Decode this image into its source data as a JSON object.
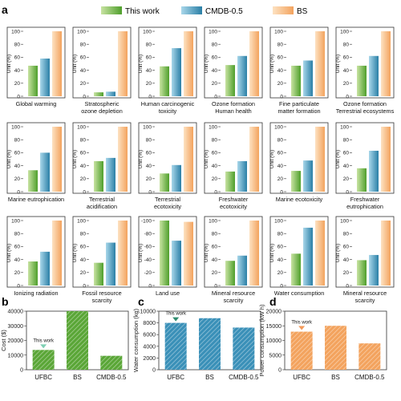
{
  "panel_letters": [
    "a",
    "b",
    "c",
    "d"
  ],
  "legend": [
    {
      "label": "This work",
      "color_light": "#c8e3a2",
      "color_dark": "#4f9f2c"
    },
    {
      "label": "CMDB-0.5",
      "color_light": "#a9d7ea",
      "color_dark": "#2a7fa6"
    },
    {
      "label": "BS",
      "color_light": "#fde2c2",
      "color_dark": "#f3a35e"
    }
  ],
  "chart_data": [
    {
      "type": "bar",
      "title": "Global warming",
      "ylabel": "Unit (%)",
      "ylim": [
        0,
        100
      ],
      "yticks": [
        0,
        20,
        40,
        60,
        80,
        100
      ],
      "categories": [
        "This work",
        "CMDB-0.5",
        "BS"
      ],
      "values": [
        47,
        58,
        100
      ]
    },
    {
      "type": "bar",
      "title": "Stratospheric ozone depletion",
      "ylabel": "Unit (%)",
      "ylim": [
        0,
        100
      ],
      "yticks": [
        0,
        20,
        40,
        60,
        80,
        100
      ],
      "categories": [
        "This work",
        "CMDB-0.5",
        "BS"
      ],
      "values": [
        6,
        7,
        100
      ]
    },
    {
      "type": "bar",
      "title": "Human carcinogenic toxicity",
      "ylabel": "Unit (%)",
      "ylim": [
        0,
        100
      ],
      "yticks": [
        0,
        20,
        40,
        60,
        80,
        100
      ],
      "categories": [
        "This work",
        "CMDB-0.5",
        "BS"
      ],
      "values": [
        46,
        74,
        100
      ]
    },
    {
      "type": "bar",
      "title": "Ozone formation Human health",
      "ylabel": "Unit (%)",
      "ylim": [
        0,
        100
      ],
      "yticks": [
        0,
        20,
        40,
        60,
        80,
        100
      ],
      "categories": [
        "This work",
        "CMDB-0.5",
        "BS"
      ],
      "values": [
        48,
        62,
        100
      ]
    },
    {
      "type": "bar",
      "title": "Fine particulate matter formation",
      "ylabel": "Unit (%)",
      "ylim": [
        0,
        100
      ],
      "yticks": [
        0,
        20,
        40,
        60,
        80,
        100
      ],
      "categories": [
        "This work",
        "CMDB-0.5",
        "BS"
      ],
      "values": [
        47,
        55,
        100
      ]
    },
    {
      "type": "bar",
      "title": "Ozone formation Terrestrial ecosystems",
      "ylabel": "Unit (%)",
      "ylim": [
        0,
        100
      ],
      "yticks": [
        0,
        20,
        40,
        60,
        80,
        100
      ],
      "categories": [
        "This work",
        "CMDB-0.5",
        "BS"
      ],
      "values": [
        47,
        62,
        100
      ]
    },
    {
      "type": "bar",
      "title": "Marine eutrophication",
      "ylabel": "Unit (%)",
      "ylim": [
        0,
        100
      ],
      "yticks": [
        0,
        20,
        40,
        60,
        80,
        100
      ],
      "categories": [
        "This work",
        "CMDB-0.5",
        "BS"
      ],
      "values": [
        33,
        60,
        100
      ]
    },
    {
      "type": "bar",
      "title": "Terrestrial acidification",
      "ylabel": "Unit (%)",
      "ylim": [
        0,
        100
      ],
      "yticks": [
        0,
        20,
        40,
        60,
        80,
        100
      ],
      "categories": [
        "This work",
        "CMDB-0.5",
        "BS"
      ],
      "values": [
        47,
        52,
        100
      ]
    },
    {
      "type": "bar",
      "title": "Terrestrial ecotoxicity",
      "ylabel": "Unit (%)",
      "ylim": [
        0,
        100
      ],
      "yticks": [
        0,
        20,
        40,
        60,
        80,
        100
      ],
      "categories": [
        "This work",
        "CMDB-0.5",
        "BS"
      ],
      "values": [
        28,
        41,
        100
      ]
    },
    {
      "type": "bar",
      "title": "Freshwater ecotoxicity",
      "ylabel": "Unit (%)",
      "ylim": [
        0,
        100
      ],
      "yticks": [
        0,
        20,
        40,
        60,
        80,
        100
      ],
      "categories": [
        "This work",
        "CMDB-0.5",
        "BS"
      ],
      "values": [
        31,
        47,
        100
      ]
    },
    {
      "type": "bar",
      "title": "Marine ecotoxicity",
      "ylabel": "Unit (%)",
      "ylim": [
        0,
        100
      ],
      "yticks": [
        0,
        20,
        40,
        60,
        80,
        100
      ],
      "categories": [
        "This work",
        "CMDB-0.5",
        "BS"
      ],
      "values": [
        32,
        48,
        100
      ]
    },
    {
      "type": "bar",
      "title": "Freshwater eutrophication",
      "ylabel": "Unit (%)",
      "ylim": [
        0,
        100
      ],
      "yticks": [
        0,
        20,
        40,
        60,
        80,
        100
      ],
      "categories": [
        "This work",
        "CMDB-0.5",
        "BS"
      ],
      "values": [
        36,
        63,
        100
      ]
    },
    {
      "type": "bar",
      "title": "Ionizing radiation",
      "ylabel": "Unit (%)",
      "ylim": [
        0,
        100
      ],
      "yticks": [
        0,
        20,
        40,
        60,
        80,
        100
      ],
      "categories": [
        "This work",
        "CMDB-0.5",
        "BS"
      ],
      "values": [
        37,
        52,
        100
      ]
    },
    {
      "type": "bar",
      "title": "Fossil resource scarcity",
      "ylabel": "Unit (%)",
      "ylim": [
        0,
        100
      ],
      "yticks": [
        0,
        20,
        40,
        60,
        80,
        100
      ],
      "categories": [
        "This work",
        "CMDB-0.5",
        "BS"
      ],
      "values": [
        35,
        66,
        100
      ]
    },
    {
      "type": "bar",
      "title": "Land use",
      "ylabel": "Unit (%)",
      "ylim": [
        0,
        -100
      ],
      "yticks": [
        0,
        -20,
        -40,
        -60,
        -80,
        -100
      ],
      "categories": [
        "This work",
        "CMDB-0.5",
        "BS"
      ],
      "values": [
        -100,
        -69,
        -98
      ]
    },
    {
      "type": "bar",
      "title": "Mineral resource scarcity",
      "ylabel": "Unit (%)",
      "ylim": [
        0,
        100
      ],
      "yticks": [
        0,
        20,
        40,
        60,
        80,
        100
      ],
      "categories": [
        "This work",
        "CMDB-0.5",
        "BS"
      ],
      "values": [
        38,
        46,
        100
      ]
    },
    {
      "type": "bar",
      "title": "Water consumption",
      "ylabel": "Unit (%)",
      "ylim": [
        0,
        100
      ],
      "yticks": [
        0,
        20,
        40,
        60,
        80,
        100
      ],
      "categories": [
        "This work",
        "CMDB-0.5",
        "BS"
      ],
      "values": [
        49,
        89,
        100
      ]
    },
    {
      "type": "bar",
      "title": "Mineral resource scarcity",
      "ylabel": "Unit (%)",
      "ylim": [
        0,
        100
      ],
      "yticks": [
        0,
        20,
        40,
        60,
        80,
        100
      ],
      "categories": [
        "This work",
        "CMDB-0.5",
        "BS"
      ],
      "values": [
        39,
        47,
        100
      ]
    },
    {
      "type": "bar",
      "title": "",
      "ylabel": "Cost ($)",
      "ylim": [
        0,
        40000
      ],
      "yticks": [
        0,
        10000,
        20000,
        30000,
        40000
      ],
      "categories": [
        "UFBC",
        "BS",
        "CMDB-0.5"
      ],
      "values": [
        13500,
        40000,
        9500
      ],
      "annotation": "This work",
      "color": "#5aa637"
    },
    {
      "type": "bar",
      "title": "",
      "ylabel": "Water consumption (kg)",
      "ylim": [
        0,
        10000
      ],
      "yticks": [
        0,
        2000,
        4000,
        6000,
        8000,
        10000
      ],
      "categories": [
        "UFBC",
        "BS",
        "CMDB-0.5"
      ],
      "values": [
        8000,
        8800,
        7200
      ],
      "annotation": "This work",
      "color": "#3a90b8"
    },
    {
      "type": "bar",
      "title": "",
      "ylabel": "Power consumption (kW h)",
      "ylim": [
        0,
        20000
      ],
      "yticks": [
        0,
        5000,
        10000,
        15000,
        20000
      ],
      "categories": [
        "UFBC",
        "BS",
        "CMDB-0.5"
      ],
      "values": [
        13000,
        15000,
        9000
      ],
      "annotation": "This work",
      "color": "#f3a35e"
    }
  ]
}
